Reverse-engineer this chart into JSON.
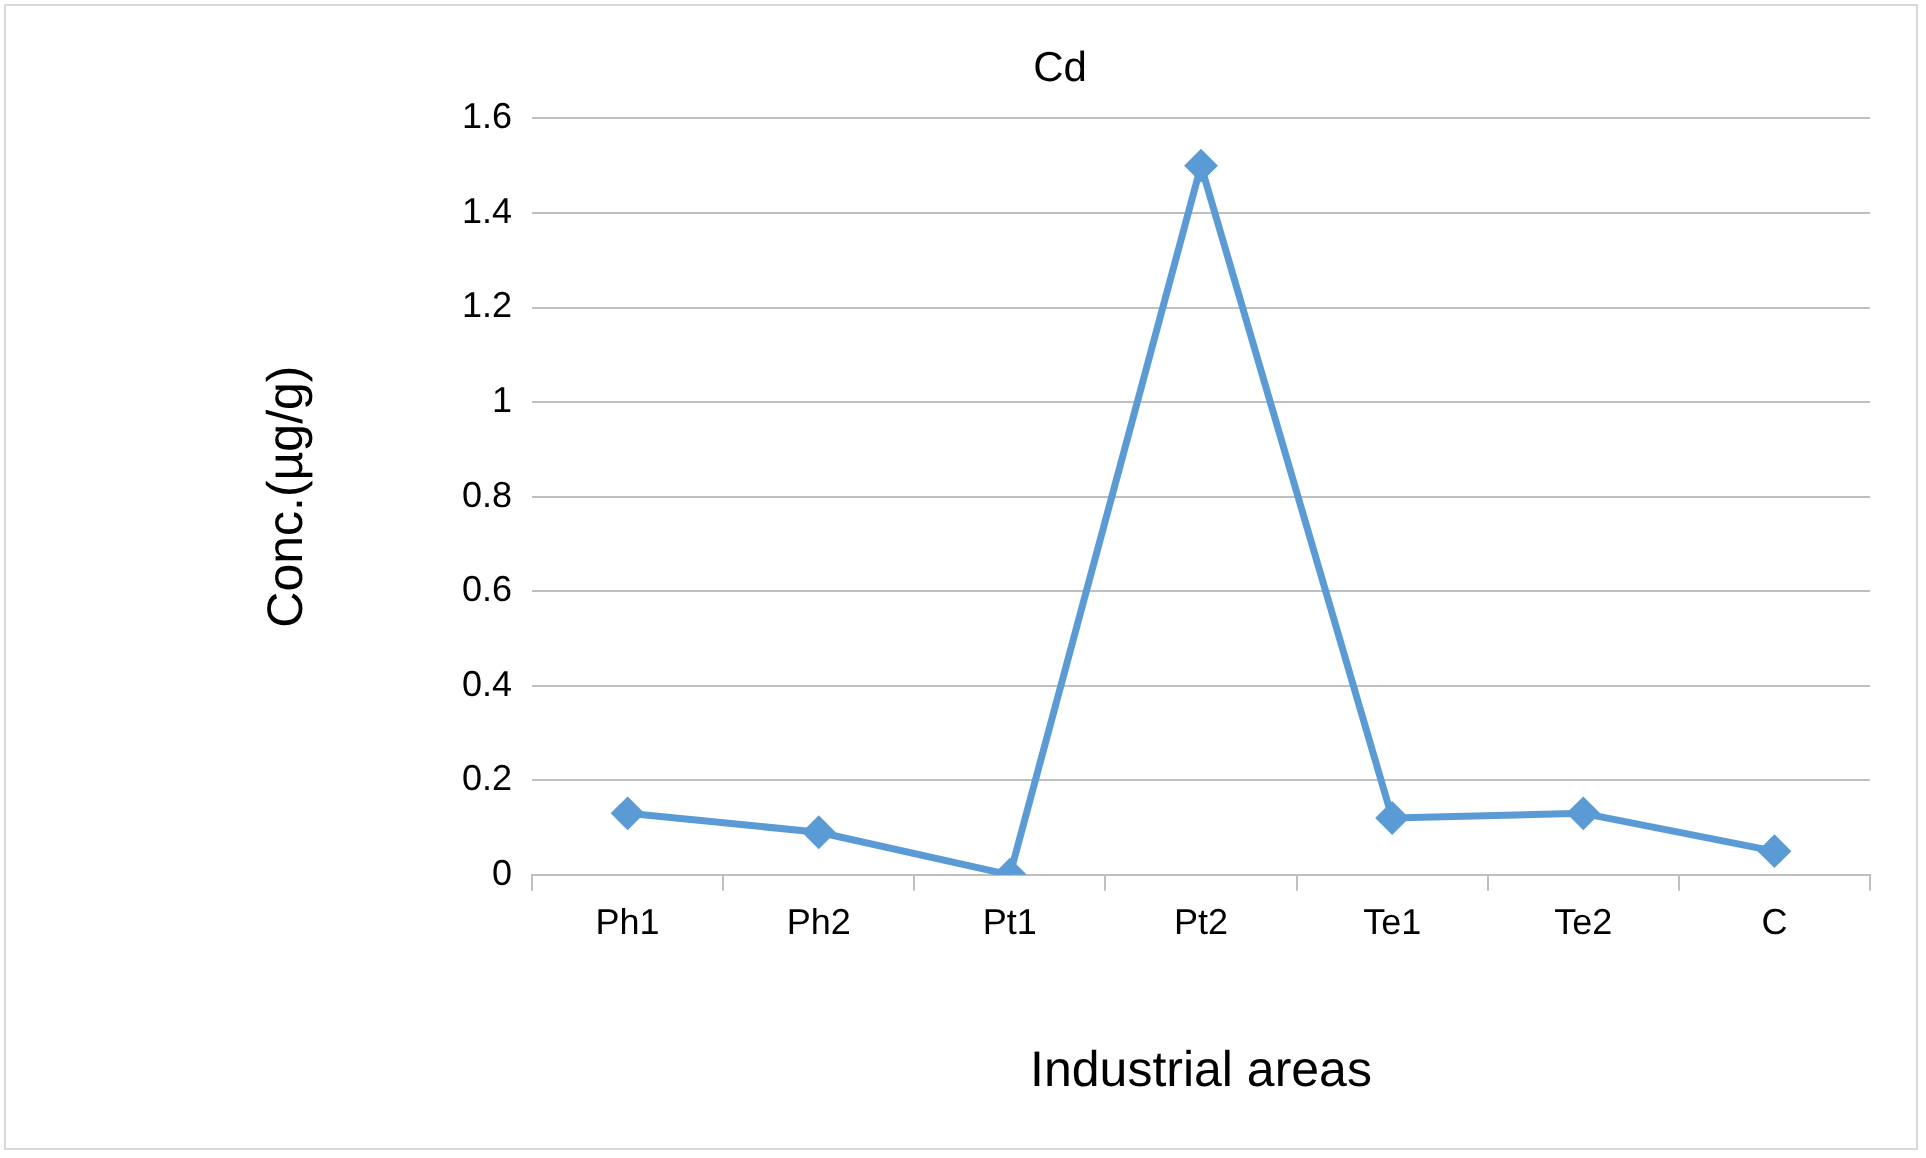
{
  "chart_data": {
    "type": "line",
    "title": "Cd",
    "xlabel": "Industrial areas",
    "ylabel": "Conc.(µg/g)",
    "categories": [
      "Ph1",
      "Ph2",
      "Pt1",
      "Pt2",
      "Te1",
      "Te2",
      "C"
    ],
    "series": [
      {
        "color": "#5b9bd5",
        "values": [
          0.13,
          0.09,
          0,
          1.5,
          0.12,
          0.13,
          0.05
        ]
      }
    ],
    "ylim": [
      0,
      1.6
    ],
    "yticks": [
      0,
      0.2,
      0.4,
      0.6,
      0.8,
      1,
      1.2,
      1.4,
      1.6
    ],
    "grid": "y",
    "legend": false,
    "marker": "diamond",
    "line_style": "solid"
  }
}
